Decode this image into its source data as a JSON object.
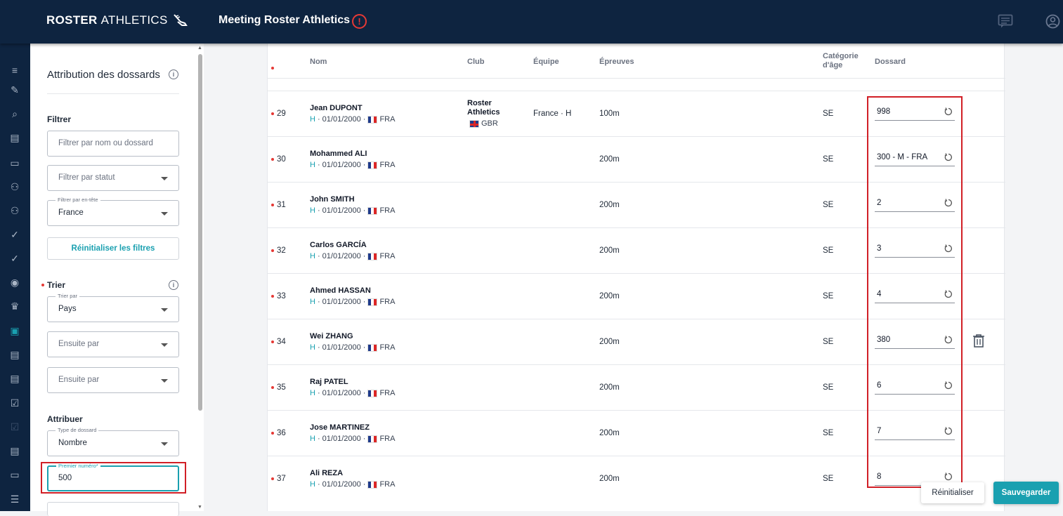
{
  "header": {
    "logo_bold": "ROSTER",
    "logo_thin": "ATHLETICS",
    "title": "Meeting Roster Athletics",
    "alert_glyph": "!"
  },
  "rail_icons": [
    "menu-icon",
    "edit-icon",
    "search-icon",
    "list-icon",
    "chat-icon",
    "users-icon",
    "group-icon",
    "check-circle-icon",
    "check-circle-outline-icon",
    "eye-icon",
    "trophy-icon",
    "bib-icon",
    "document-icon",
    "document-alt-icon",
    "checkbox-icon",
    "checkbox-disabled-icon",
    "report-icon",
    "briefcase-icon",
    "list-bullets-icon"
  ],
  "panel": {
    "title": "Attribution des dossards",
    "filter_section": "Filtrer",
    "filter_search_placeholder": "Filtrer par nom ou dossard",
    "filter_status_placeholder": "Filtrer par statut",
    "filter_header_legend": "Filtrer par en-tête",
    "filter_header_value": "France",
    "reset_filters": "Réinitialiser les filtres",
    "sort_section": "Trier",
    "sort_by_legend": "Trier par",
    "sort_by_value": "Pays",
    "then_by_1": "Ensuite par",
    "then_by_2": "Ensuite par",
    "assign_section": "Attribuer",
    "bib_type_legend": "Type de dossard",
    "bib_type_value": "Nombre",
    "first_number_legend": "Premier numéro*",
    "first_number_value": "500"
  },
  "table": {
    "headers": {
      "nom": "Nom",
      "club": "Club",
      "equipe": "Équipe",
      "epreuves": "Épreuves",
      "categorie": "Catégorie d'âge",
      "dossard": "Dossard"
    },
    "rows": [
      {
        "num": "29",
        "name": "Jean DUPONT",
        "gender": "H",
        "dob": "· 01/01/2000 ·",
        "country": "FRA",
        "club_line1": "Roster",
        "club_line2": "Athletics",
        "club_country": "GBR",
        "team": "France · H",
        "event": "100m",
        "cat": "SE",
        "bib": "998"
      },
      {
        "num": "30",
        "name": "Mohammed ALI",
        "gender": "H",
        "dob": "· 01/01/2000 ·",
        "country": "FRA",
        "event": "200m",
        "cat": "SE",
        "bib": "300 - M - FRA"
      },
      {
        "num": "31",
        "name": "John SMITH",
        "gender": "H",
        "dob": "· 01/01/2000 ·",
        "country": "FRA",
        "event": "200m",
        "cat": "SE",
        "bib": "2"
      },
      {
        "num": "32",
        "name": "Carlos GARCÍA",
        "gender": "H",
        "dob": "· 01/01/2000 ·",
        "country": "FRA",
        "event": "200m",
        "cat": "SE",
        "bib": "3"
      },
      {
        "num": "33",
        "name": "Ahmed HASSAN",
        "gender": "H",
        "dob": "· 01/01/2000 ·",
        "country": "FRA",
        "event": "200m",
        "cat": "SE",
        "bib": "4"
      },
      {
        "num": "34",
        "name": "Wei ZHANG",
        "gender": "H",
        "dob": "· 01/01/2000 ·",
        "country": "FRA",
        "event": "200m",
        "cat": "SE",
        "bib": "380"
      },
      {
        "num": "35",
        "name": "Raj PATEL",
        "gender": "H",
        "dob": "· 01/01/2000 ·",
        "country": "FRA",
        "event": "200m",
        "cat": "SE",
        "bib": "6"
      },
      {
        "num": "36",
        "name": "Jose MARTINEZ",
        "gender": "H",
        "dob": "· 01/01/2000 ·",
        "country": "FRA",
        "event": "200m",
        "cat": "SE",
        "bib": "7"
      },
      {
        "num": "37",
        "name": "Ali REZA",
        "gender": "H",
        "dob": "· 01/01/2000 ·",
        "country": "FRA",
        "event": "200m",
        "cat": "SE",
        "bib": "8"
      }
    ]
  },
  "footer": {
    "reset_label": "Réinitialiser",
    "save_label": "Sauvegarder"
  },
  "colors": {
    "topbar": "#0e2440",
    "accent": "#1aa0b0",
    "alert": "#e53935",
    "highlight_box": "#d11f26"
  }
}
